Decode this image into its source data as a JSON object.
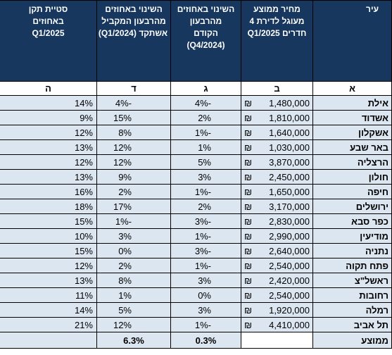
{
  "table": {
    "headers": [
      {
        "letter": "א",
        "lines": [
          "עיר"
        ]
      },
      {
        "letter": "ב",
        "lines": [
          "מחיר ממוצע",
          "מעוגל לדירת 4",
          "חדרים Q1/2025"
        ]
      },
      {
        "letter": "ג",
        "lines": [
          "השינוי באחוזים",
          "מהרבעון",
          "הקודם",
          "(Q4/2024)"
        ]
      },
      {
        "letter": "ד",
        "lines": [
          "השינוי באחוזים",
          "מהרבעון המקביל",
          "אשתקד (Q1/2024)"
        ]
      },
      {
        "letter": "ה",
        "lines": [
          "סטיית תקן",
          "באחוזים",
          "Q1/2025"
        ]
      }
    ],
    "currency": "₪",
    "rows": [
      [
        "אילת",
        "1,480,000",
        "-4%",
        "-4%",
        "14%"
      ],
      [
        "אשדוד",
        "1,810,000",
        "2%",
        "15%",
        "9%"
      ],
      [
        "אשקלון",
        "1,640,000",
        "-1%",
        "8%",
        "12%"
      ],
      [
        "באר שבע",
        "1,030,000",
        "1%",
        "12%",
        "13%"
      ],
      [
        "הרצליה",
        "3,870,000",
        "5%",
        "12%",
        "12%"
      ],
      [
        "חולון",
        "2,450,000",
        "3%",
        "9%",
        "13%"
      ],
      [
        "חיפה",
        "1,650,000",
        "-1%",
        "2%",
        "16%"
      ],
      [
        "ירושלים",
        "3,170,000",
        "2%",
        "17%",
        "18%"
      ],
      [
        "כפר סבא",
        "2,830,000",
        "-3%",
        "-1%",
        "15%"
      ],
      [
        "מודיעין",
        "2,990,000",
        "-1%",
        "3%",
        "10%"
      ],
      [
        "נתניה",
        "2,640,000",
        "-3%",
        "0%",
        "15%"
      ],
      [
        "פתח תקוה",
        "2,540,000",
        "-1%",
        "2%",
        "12%"
      ],
      [
        "ראשל\"צ",
        "2,420,000",
        "3%",
        "8%",
        "13%"
      ],
      [
        "רחובות",
        "2,540,000",
        "0%",
        "1%",
        "11%"
      ],
      [
        "רמלה",
        "1,920,000",
        "3%",
        "5%",
        "14%"
      ],
      [
        "תל אביב",
        "4,410,000",
        "-1%",
        "12%",
        "21%"
      ]
    ],
    "summary": {
      "label": "ממוצע",
      "change_prev": "0.3%",
      "change_year": "6.3%"
    }
  }
}
